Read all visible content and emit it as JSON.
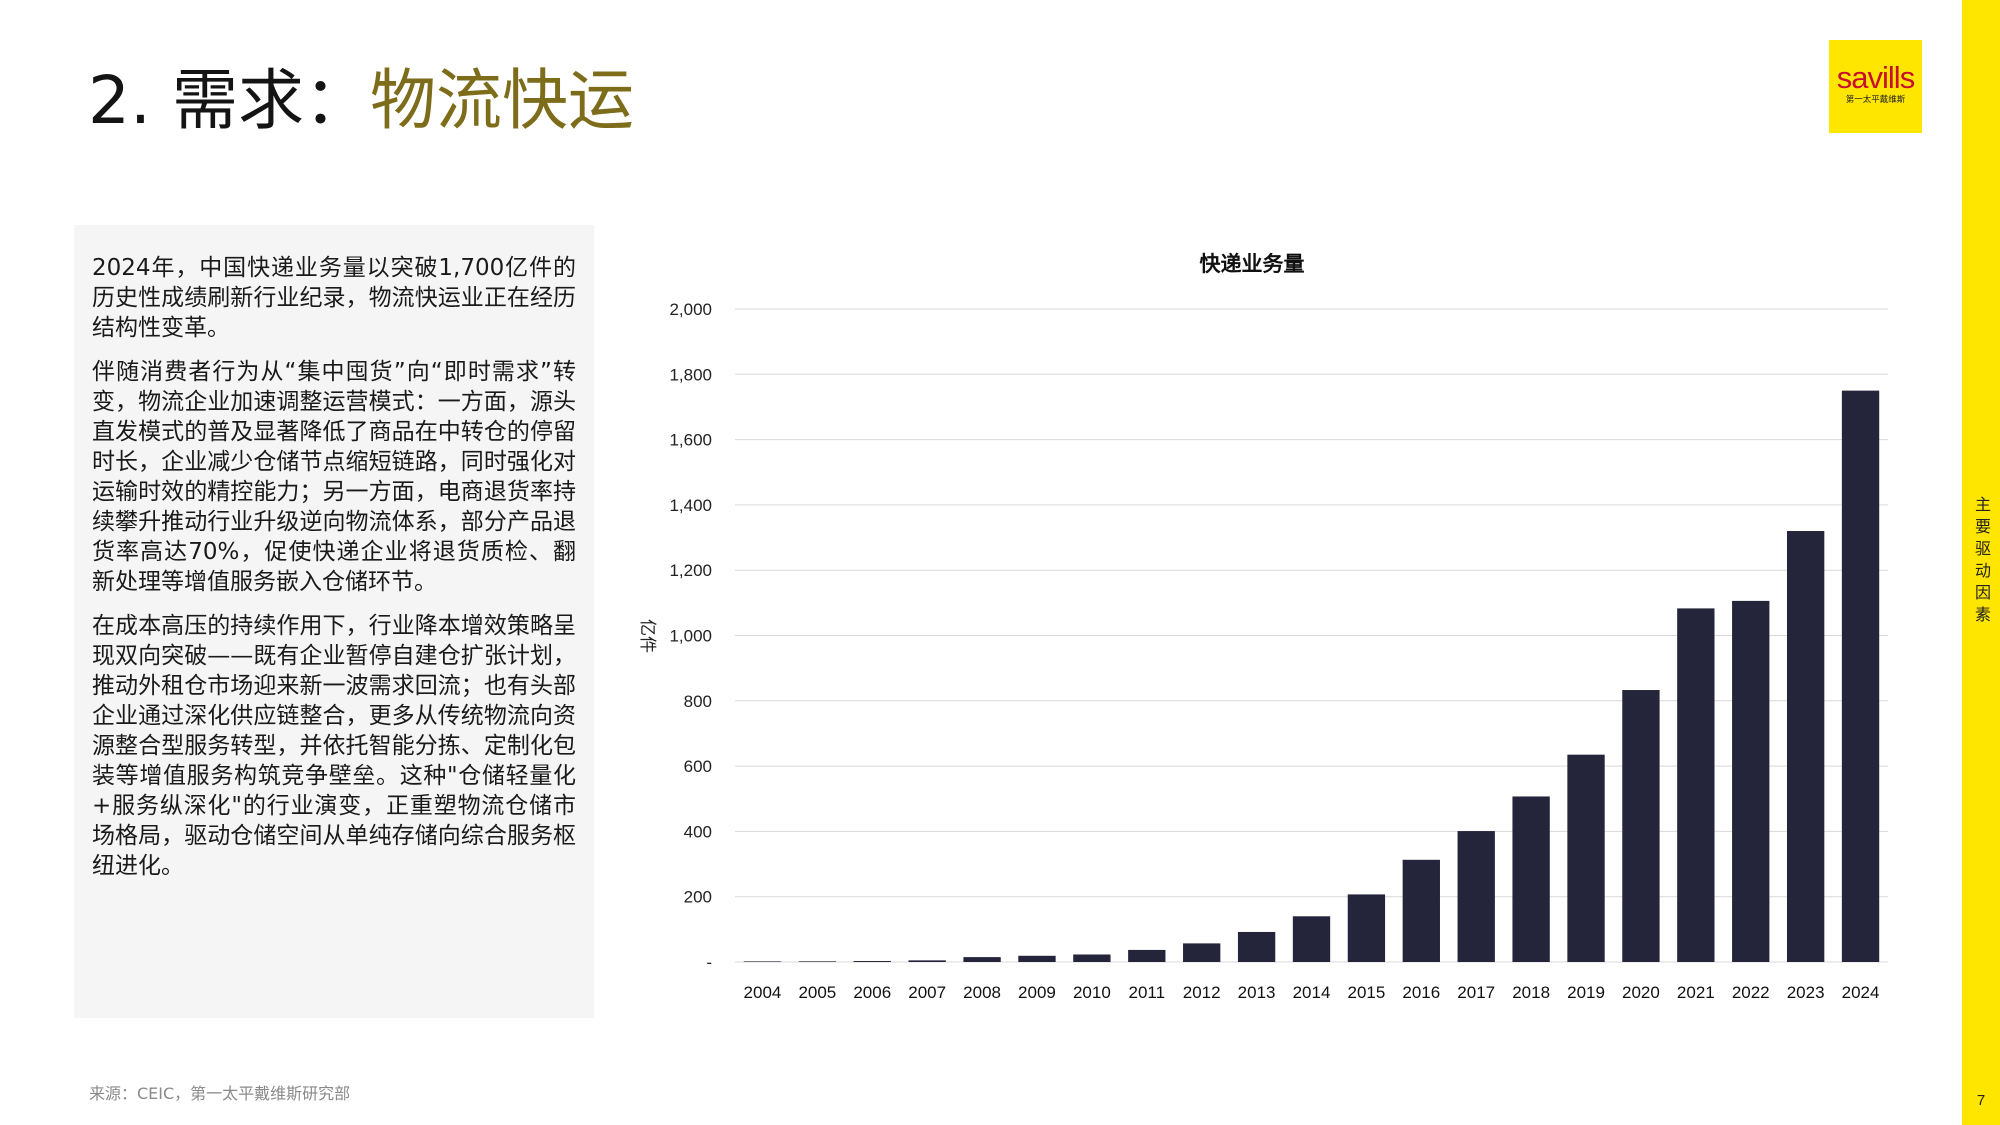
{
  "header": {
    "title_num": "2. 需求：",
    "title_topic": "物流快运"
  },
  "logo": {
    "word": "savills",
    "sub": "第一太平戴维斯"
  },
  "sidebar": {
    "label": "主要驱动因素",
    "page": "7"
  },
  "text_panel": {
    "paragraphs": [
      "2024年，中国快递业务量以突破1,700亿件的历史性成绩刷新行业纪录，物流快运业正在经历结构性变革。",
      "伴随消费者行为从“集中囤货”向“即时需求”转变，物流企业加速调整运营模式：一方面，源头直发模式的普及显著降低了商品在中转仓的停留时长，企业减少仓储节点缩短链路，同时强化对运输时效的精控能力；另一方面，电商退货率持续攀升推动行业升级逆向物流体系，部分产品退货率高达70%，促使快递企业将退货质检、翻新处理等增值服务嵌入仓储环节。",
      "在成本高压的持续作用下，行业降本增效策略呈现双向突破——既有企业暂停自建仓扩张计划，推动外租仓市场迎来新一波需求回流；也有头部企业通过深化供应链整合，更多从传统物流向资源整合型服务转型，并依托智能分拣、定制化包装等增值服务构筑竞争壁垒。这种\"仓储轻量化+服务纵深化\"的行业演变，正重塑物流仓储市场格局，驱动仓储空间从单纯存储向综合服务枢纽进化。"
    ]
  },
  "source": "来源：CEIC，第一太平戴维斯研究部",
  "colors": {
    "bar": "#24253a",
    "accent_yellow": "#ffe600",
    "title_topic": "#7d6c1a",
    "panel_bg": "#f5f5f5"
  },
  "chart_data": {
    "type": "bar",
    "title": "快递业务量",
    "ylabel": "亿件",
    "xlabel": "",
    "ylim": [
      0,
      2000
    ],
    "yticks": [
      0,
      200,
      400,
      600,
      800,
      1000,
      1200,
      1400,
      1600,
      1800,
      2000
    ],
    "ytick_labels": [
      "-",
      "200",
      "400",
      "600",
      "800",
      "1,000",
      "1,200",
      "1,400",
      "1,600",
      "1,800",
      "2,000"
    ],
    "grid": true,
    "categories": [
      "2004",
      "2005",
      "2006",
      "2007",
      "2008",
      "2009",
      "2010",
      "2011",
      "2012",
      "2013",
      "2014",
      "2015",
      "2016",
      "2017",
      "2018",
      "2019",
      "2020",
      "2021",
      "2022",
      "2023",
      "2024"
    ],
    "values": [
      1,
      2,
      3,
      5,
      15,
      19,
      23,
      37,
      57,
      92,
      140,
      207,
      313,
      401,
      507,
      635,
      833,
      1083,
      1106,
      1320,
      1750
    ]
  }
}
